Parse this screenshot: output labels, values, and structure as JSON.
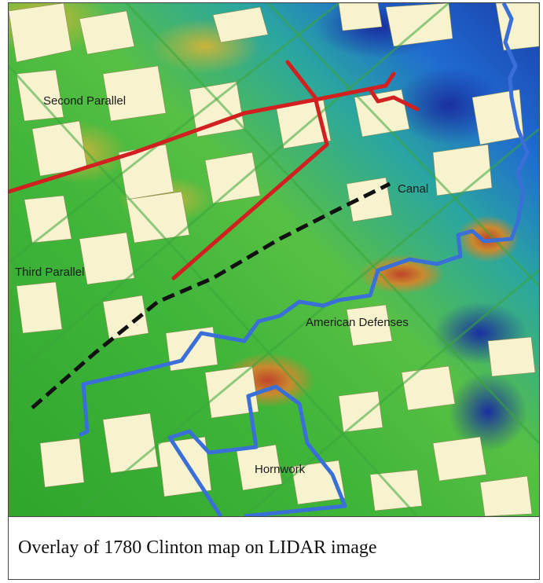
{
  "figure": {
    "caption": "Overlay of 1780 Clinton map on LIDAR image"
  },
  "map": {
    "labels": {
      "second_parallel": "Second Parallel",
      "third_parallel": "Third Parallel",
      "canal": "Canal",
      "american_defenses": "American Defenses",
      "hornwork": "Hornwork"
    },
    "legend_colors": {
      "british_lines": "#d21f1f",
      "american_defenses": "#3a6fd8",
      "canal": "#111111"
    }
  }
}
